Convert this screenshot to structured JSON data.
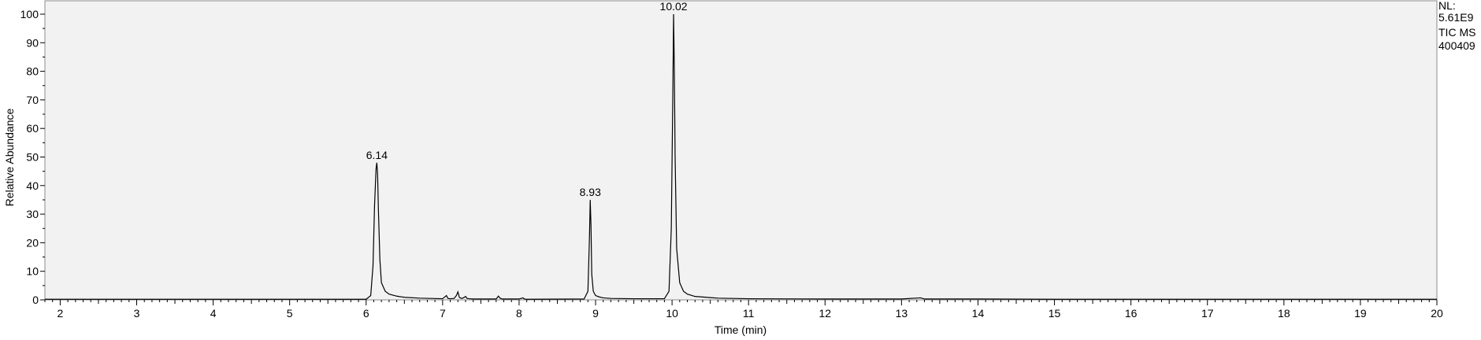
{
  "chart_data": {
    "type": "line",
    "title": "",
    "xlabel": "Time (min)",
    "ylabel": "Relative Abundance",
    "xlim": [
      1.8,
      20
    ],
    "ylim": [
      0,
      100
    ],
    "x_ticks": [
      2,
      3,
      4,
      5,
      6,
      7,
      8,
      9,
      10,
      11,
      12,
      13,
      14,
      15,
      16,
      17,
      18,
      19,
      20
    ],
    "y_ticks": [
      0,
      10,
      20,
      30,
      40,
      50,
      60,
      70,
      80,
      90,
      100
    ],
    "grid": false,
    "info": [
      "NL:",
      "5.61E9",
      "TIC  MS",
      "400409"
    ],
    "peaks": [
      {
        "label": "6.14",
        "x": 6.14,
        "y": 48
      },
      {
        "label": "8.93",
        "x": 8.93,
        "y": 35
      },
      {
        "label": "10.02",
        "x": 10.02,
        "y": 100
      }
    ],
    "series": [
      {
        "x": [
          1.8,
          6.0,
          6.06,
          6.09,
          6.11,
          6.13,
          6.14,
          6.15,
          6.16,
          6.18,
          6.2,
          6.25,
          6.3,
          6.4,
          6.5,
          6.7,
          7.0,
          7.05,
          7.07,
          7.1,
          7.15,
          7.18,
          7.2,
          7.22,
          7.25,
          7.28,
          7.3,
          7.32,
          7.35,
          7.4,
          7.7,
          7.73,
          7.75,
          7.78,
          7.8,
          8.0,
          8.05,
          8.07,
          8.1,
          8.85,
          8.9,
          8.92,
          8.93,
          8.94,
          8.95,
          8.97,
          9.0,
          9.05,
          9.1,
          9.2,
          9.5,
          9.9,
          9.96,
          9.99,
          10.01,
          10.02,
          10.03,
          10.04,
          10.06,
          10.1,
          10.15,
          10.2,
          10.3,
          10.5,
          10.6,
          11.0,
          12.0,
          13.0,
          13.25,
          13.3,
          13.35,
          14.0,
          15.0,
          16.0,
          17.0,
          18.0,
          19.0,
          20.0
        ],
        "y": [
          0.2,
          0.2,
          1.5,
          12,
          33,
          46,
          48,
          44,
          32,
          14,
          6,
          3,
          2,
          1.3,
          0.9,
          0.6,
          0.4,
          1.5,
          0.5,
          0.4,
          0.5,
          1.5,
          2.8,
          0.8,
          0.5,
          0.8,
          1.2,
          0.5,
          0.4,
          0.3,
          0.3,
          1.3,
          0.6,
          0.3,
          0.3,
          0.3,
          0.7,
          0.3,
          0.2,
          0.3,
          3,
          22,
          35,
          26,
          9,
          3,
          1.5,
          1,
          0.7,
          0.5,
          0.4,
          0.4,
          3,
          25,
          72,
          100,
          80,
          50,
          18,
          6,
          3,
          2,
          1.2,
          0.8,
          0.6,
          0.4,
          0.3,
          0.3,
          0.7,
          0.3,
          0.3,
          0.3,
          0.2,
          0.2,
          0.2,
          0.2,
          0.2,
          0.2
        ]
      }
    ]
  }
}
